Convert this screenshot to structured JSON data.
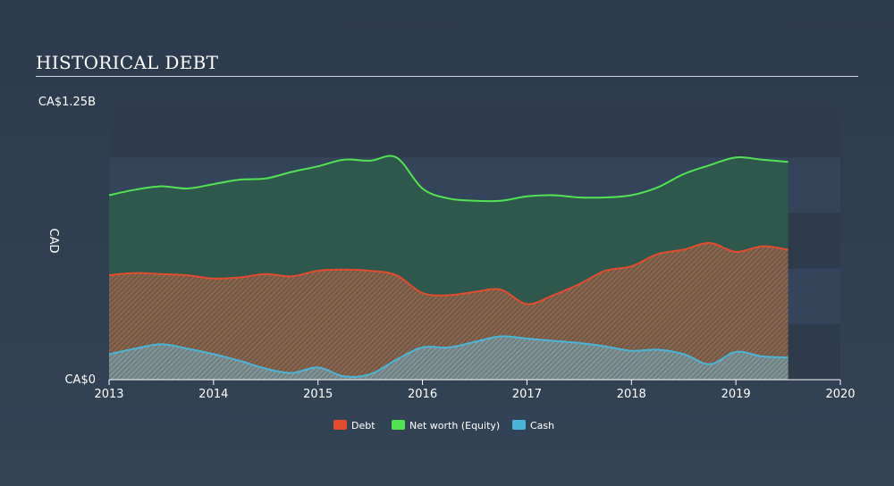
{
  "header": {
    "title": "HISTORICAL DEBT"
  },
  "colors": {
    "debt": "#e34b2f",
    "equity": "#52e352",
    "cash": "#4bb5d9",
    "band_dark": "#2d3b4d",
    "band_light": "#34445a"
  },
  "chart_data": {
    "type": "area",
    "title": "HISTORICAL DEBT",
    "ylabel": "CAD",
    "y_tick_labels": [
      "CA$0",
      "CA$1.25B"
    ],
    "ylim": [
      0,
      1.25
    ],
    "xlim": [
      2013,
      2020
    ],
    "x_ticks": [
      "2013",
      "2014",
      "2015",
      "2016",
      "2017",
      "2018",
      "2019",
      "2020"
    ],
    "grid": "horizontal bands",
    "legend": "bottom-center",
    "series": [
      {
        "name": "Debt",
        "color": "#e34b2f",
        "x": [
          2013.0,
          2013.25,
          2013.5,
          2013.75,
          2014.0,
          2014.25,
          2014.5,
          2014.75,
          2015.0,
          2015.25,
          2015.5,
          2015.75,
          2016.0,
          2016.25,
          2016.5,
          2016.75,
          2017.0,
          2017.25,
          2017.5,
          2017.75,
          2018.0,
          2018.25,
          2018.5,
          2018.75,
          2019.0,
          2019.25,
          2019.5
        ],
        "values": [
          0.47,
          0.48,
          0.475,
          0.47,
          0.455,
          0.46,
          0.475,
          0.465,
          0.49,
          0.495,
          0.49,
          0.47,
          0.39,
          0.38,
          0.395,
          0.405,
          0.34,
          0.38,
          0.43,
          0.49,
          0.51,
          0.565,
          0.585,
          0.615,
          0.575,
          0.6,
          0.585
        ]
      },
      {
        "name": "Net worth (Equity)",
        "color": "#52e352",
        "x": [
          2013.0,
          2013.25,
          2013.5,
          2013.75,
          2014.0,
          2014.25,
          2014.5,
          2014.75,
          2015.0,
          2015.25,
          2015.5,
          2015.75,
          2016.0,
          2016.25,
          2016.5,
          2016.75,
          2017.0,
          2017.25,
          2017.5,
          2017.75,
          2018.0,
          2018.25,
          2018.5,
          2018.75,
          2019.0,
          2019.25,
          2019.5
        ],
        "values": [
          0.83,
          0.855,
          0.87,
          0.86,
          0.88,
          0.9,
          0.905,
          0.935,
          0.96,
          0.99,
          0.985,
          1.0,
          0.86,
          0.815,
          0.805,
          0.805,
          0.825,
          0.83,
          0.82,
          0.82,
          0.83,
          0.865,
          0.925,
          0.965,
          1.0,
          0.99,
          0.98
        ]
      },
      {
        "name": "Cash",
        "color": "#4bb5d9",
        "x": [
          2013.0,
          2013.25,
          2013.5,
          2013.75,
          2014.0,
          2014.25,
          2014.5,
          2014.75,
          2015.0,
          2015.25,
          2015.5,
          2015.75,
          2016.0,
          2016.25,
          2016.5,
          2016.75,
          2017.0,
          2017.25,
          2017.5,
          2017.75,
          2018.0,
          2018.25,
          2018.5,
          2018.75,
          2019.0,
          2019.25,
          2019.5
        ],
        "values": [
          0.115,
          0.14,
          0.16,
          0.14,
          0.115,
          0.085,
          0.05,
          0.03,
          0.055,
          0.015,
          0.025,
          0.09,
          0.145,
          0.145,
          0.17,
          0.195,
          0.185,
          0.175,
          0.165,
          0.15,
          0.13,
          0.135,
          0.115,
          0.07,
          0.125,
          0.105,
          0.1
        ]
      }
    ]
  }
}
